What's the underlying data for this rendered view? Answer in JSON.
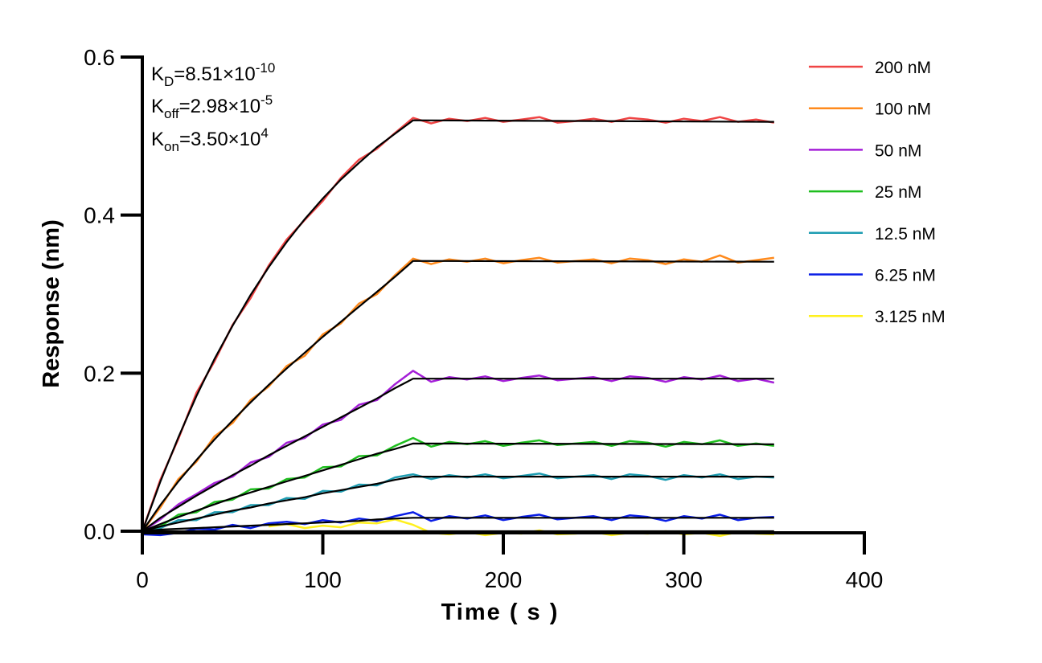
{
  "chart_data": {
    "type": "line",
    "title": "",
    "xlabel": "Time ( s )",
    "ylabel": "Response (nm)",
    "xlim": [
      0,
      400
    ],
    "ylim": [
      0,
      0.6
    ],
    "xticks": [
      "0",
      "100",
      "200",
      "300",
      "400"
    ],
    "yticks": [
      "0.0",
      "0.2",
      "0.4",
      "0.6"
    ],
    "grid": false,
    "legend_placement": "right",
    "annotations": {
      "kd": {
        "label": "K",
        "sub": "D",
        "value": "=8.51×10",
        "exp": "-10"
      },
      "koff": {
        "label": "K",
        "sub": "off",
        "value": "=2.98×10",
        "exp": "-5"
      },
      "kon": {
        "label": "K",
        "sub": "on",
        "value": "=3.50×10",
        "exp": "4"
      }
    },
    "fit_color": "#000000",
    "fit_x": [
      0,
      10,
      20,
      30,
      40,
      50,
      60,
      70,
      80,
      90,
      100,
      110,
      120,
      130,
      140,
      150,
      350
    ],
    "data_x_step": 10,
    "series": [
      {
        "name": "200 nM",
        "color": "#F04545",
        "data": [
          0,
          0.065,
          0.117,
          0.175,
          0.215,
          0.261,
          0.295,
          0.336,
          0.369,
          0.394,
          0.418,
          0.447,
          0.47,
          0.484,
          0.504,
          0.523,
          0.516,
          0.522,
          0.519,
          0.523,
          0.518,
          0.521,
          0.524,
          0.517,
          0.519,
          0.522,
          0.518,
          0.523,
          0.521,
          0.517,
          0.522,
          0.519,
          0.524,
          0.518,
          0.521,
          0.517
        ],
        "fit": [
          0,
          0.0625,
          0.119,
          0.171,
          0.218,
          0.26,
          0.299,
          0.334,
          0.366,
          0.395,
          0.421,
          0.445,
          0.466,
          0.486,
          0.503,
          0.52,
          0.518
        ]
      },
      {
        "name": "100 nM",
        "color": "#FF8A1C",
        "data": [
          0,
          0.03,
          0.066,
          0.088,
          0.12,
          0.137,
          0.166,
          0.183,
          0.209,
          0.222,
          0.249,
          0.263,
          0.288,
          0.3,
          0.324,
          0.345,
          0.338,
          0.344,
          0.341,
          0.345,
          0.339,
          0.343,
          0.346,
          0.34,
          0.342,
          0.344,
          0.339,
          0.345,
          0.343,
          0.338,
          0.344,
          0.341,
          0.349,
          0.34,
          0.343,
          0.346
        ],
        "fit": [
          0,
          0.033,
          0.063,
          0.09,
          0.116,
          0.14,
          0.163,
          0.185,
          0.206,
          0.226,
          0.246,
          0.265,
          0.284,
          0.303,
          0.322,
          0.342,
          0.341
        ]
      },
      {
        "name": "50 nM",
        "color": "#A41FD8",
        "data": [
          0,
          0.015,
          0.034,
          0.047,
          0.061,
          0.069,
          0.087,
          0.094,
          0.112,
          0.118,
          0.135,
          0.141,
          0.16,
          0.166,
          0.186,
          0.203,
          0.189,
          0.195,
          0.192,
          0.196,
          0.19,
          0.194,
          0.197,
          0.191,
          0.193,
          0.195,
          0.19,
          0.196,
          0.194,
          0.189,
          0.195,
          0.192,
          0.197,
          0.19,
          0.193,
          0.188
        ],
        "fit": [
          0,
          0.017,
          0.031,
          0.045,
          0.058,
          0.071,
          0.083,
          0.096,
          0.108,
          0.12,
          0.132,
          0.144,
          0.156,
          0.168,
          0.181,
          0.193,
          0.193
        ]
      },
      {
        "name": "25 nM",
        "color": "#1FBE1F",
        "data": [
          0,
          0.006,
          0.021,
          0.024,
          0.037,
          0.04,
          0.053,
          0.054,
          0.066,
          0.068,
          0.081,
          0.082,
          0.095,
          0.096,
          0.108,
          0.118,
          0.107,
          0.113,
          0.11,
          0.114,
          0.108,
          0.112,
          0.115,
          0.109,
          0.111,
          0.113,
          0.108,
          0.114,
          0.112,
          0.107,
          0.113,
          0.11,
          0.115,
          0.108,
          0.111,
          0.108
        ],
        "fit": [
          0,
          0.009,
          0.018,
          0.026,
          0.034,
          0.042,
          0.049,
          0.056,
          0.063,
          0.07,
          0.077,
          0.084,
          0.091,
          0.098,
          0.104,
          0.111,
          0.11
        ]
      },
      {
        "name": "12.5 nM",
        "color": "#1E9DB2",
        "data": [
          0,
          0.004,
          0.014,
          0.014,
          0.024,
          0.024,
          0.033,
          0.033,
          0.042,
          0.041,
          0.051,
          0.05,
          0.059,
          0.058,
          0.068,
          0.072,
          0.066,
          0.071,
          0.068,
          0.072,
          0.067,
          0.07,
          0.073,
          0.067,
          0.069,
          0.071,
          0.066,
          0.072,
          0.07,
          0.065,
          0.071,
          0.068,
          0.072,
          0.066,
          0.069,
          0.068
        ],
        "fit": [
          0,
          0.006,
          0.011,
          0.016,
          0.021,
          0.026,
          0.03,
          0.035,
          0.039,
          0.043,
          0.048,
          0.052,
          0.056,
          0.06,
          0.065,
          0.069,
          0.069
        ]
      },
      {
        "name": "6.25 nM",
        "color": "#0A1EE6",
        "data": [
          -0.004,
          -0.005,
          -0.002,
          0.003,
          0.002,
          0.008,
          0.004,
          0.01,
          0.012,
          0.009,
          0.014,
          0.011,
          0.016,
          0.013,
          0.019,
          0.024,
          0.013,
          0.019,
          0.016,
          0.02,
          0.014,
          0.018,
          0.021,
          0.015,
          0.017,
          0.019,
          0.014,
          0.02,
          0.018,
          0.013,
          0.019,
          0.016,
          0.021,
          0.014,
          0.017,
          0.018
        ],
        "fit": [
          0,
          0.002,
          0.003,
          0.004,
          0.005,
          0.006,
          0.007,
          0.008,
          0.009,
          0.01,
          0.011,
          0.012,
          0.013,
          0.015,
          0.016,
          0.017,
          0.017
        ]
      },
      {
        "name": "3.125 nM",
        "color": "#FFF01E",
        "data": [
          null,
          null,
          null,
          null,
          null,
          null,
          null,
          0.006,
          0.009,
          0.004,
          0.007,
          0.005,
          0.011,
          0.01,
          0.015,
          0.008,
          -0.002,
          -0.004,
          -0.001,
          -0.005,
          -0.002,
          -0.003,
          0.001,
          -0.004,
          -0.003,
          -0.001,
          -0.005,
          -0.002,
          -0.003,
          0.0,
          -0.004,
          -0.002,
          -0.006,
          -0.001,
          -0.003,
          -0.004
        ],
        "fit": [
          0,
          0,
          0,
          0,
          0,
          0,
          0,
          0,
          0,
          0,
          0,
          0,
          0,
          0,
          0,
          0,
          0
        ]
      }
    ]
  }
}
